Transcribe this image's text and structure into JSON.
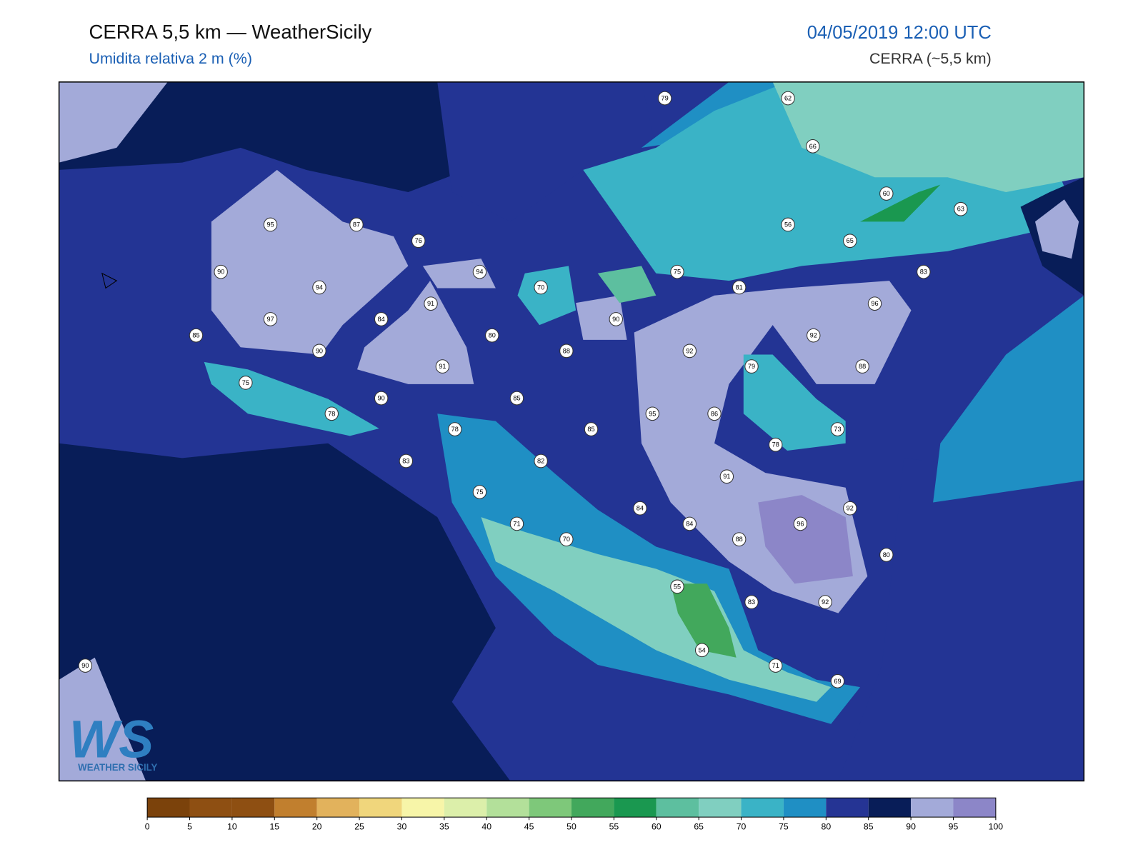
{
  "header": {
    "title": "CERRA 5,5 km — WeatherSicily",
    "subtitle": "Umidita relativa 2 m (%)",
    "datetime": "04/05/2019 12:00 UTC",
    "model": "CERRA (~5,5 km)"
  },
  "stations": [
    79,
    62,
    66,
    60,
    63,
    56,
    65,
    95,
    87,
    76,
    90,
    94,
    94,
    75,
    83,
    70,
    81,
    91,
    96,
    97,
    84,
    90,
    85,
    80,
    92,
    90,
    88,
    92,
    91,
    79,
    88,
    75,
    90,
    85,
    86,
    78,
    95,
    78,
    85,
    73,
    78,
    83,
    82,
    91,
    75,
    84,
    92,
    71,
    84,
    96,
    70,
    88,
    80,
    55,
    83,
    92,
    54,
    71,
    69,
    90
  ],
  "colorbar": {
    "ticks": [
      0,
      5,
      10,
      15,
      20,
      25,
      30,
      35,
      40,
      45,
      50,
      55,
      60,
      65,
      70,
      75,
      80,
      85,
      90,
      95,
      100
    ],
    "colors": [
      "#7b420b",
      "#8e4f12",
      "#8e4f12",
      "#c17f2e",
      "#e2b25c",
      "#f0d67c",
      "#f7f5a8",
      "#dcefaa",
      "#b3e09a",
      "#7ec87a",
      "#42a85c",
      "#1a9850",
      "#5dbf9f",
      "#80cfc0",
      "#3ab3c6",
      "#1f8fc4",
      "#253494",
      "#081d58",
      "#a3aad9",
      "#8c86c8"
    ]
  },
  "logo": {
    "mark": "WS",
    "name": "WEATHER SICILY"
  }
}
